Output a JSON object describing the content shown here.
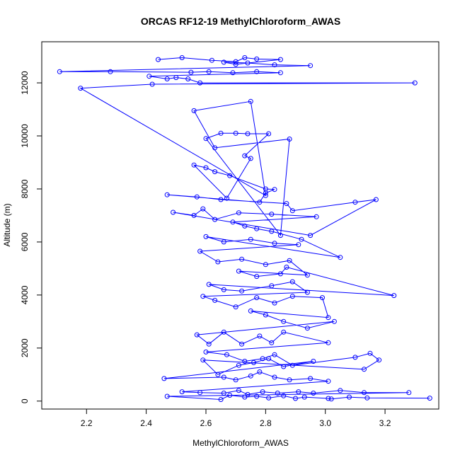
{
  "chart_data": {
    "type": "scatter",
    "title": "ORCAS RF12-19 MethylChloroform_AWAS",
    "xlabel": "MethylChloroform_AWAS",
    "ylabel": "Altitude (m)",
    "xlim": [
      2.05,
      3.38
    ],
    "ylim": [
      -300,
      13550
    ],
    "xticks": [
      2.2,
      2.4,
      2.6,
      2.8,
      3.0,
      3.2
    ],
    "yticks": [
      0,
      2000,
      4000,
      6000,
      8000,
      10000,
      12000
    ],
    "xtick_labels": [
      "2.2",
      "2.4",
      "2.6",
      "2.8",
      "3.0",
      "3.2"
    ],
    "ytick_labels": [
      "0",
      "2000",
      "4000",
      "6000",
      "8000",
      "10000",
      "12000"
    ],
    "color": "#0000ff",
    "grid": false,
    "series": [
      {
        "points": [
          [
            2.44,
            12880
          ],
          [
            2.52,
            12950
          ],
          [
            2.62,
            12850
          ],
          [
            2.7,
            12800
          ],
          [
            2.73,
            12950
          ],
          [
            2.77,
            12900
          ],
          [
            2.85,
            12880
          ],
          [
            2.7,
            12700
          ],
          [
            2.66,
            12780
          ],
          [
            2.74,
            12750
          ],
          [
            2.83,
            12680
          ],
          [
            2.95,
            12650
          ],
          [
            2.11,
            12420
          ],
          [
            2.28,
            12420
          ],
          [
            2.55,
            12400
          ],
          [
            2.61,
            12420
          ],
          [
            2.69,
            12380
          ],
          [
            2.77,
            12420
          ],
          [
            2.85,
            12380
          ],
          [
            2.41,
            12250
          ],
          [
            2.47,
            12150
          ],
          [
            2.5,
            12200
          ],
          [
            2.54,
            12150
          ],
          [
            2.58,
            12000
          ],
          [
            3.3,
            12000
          ],
          [
            2.42,
            11950
          ],
          [
            2.18,
            11800
          ],
          [
            2.8,
            7750
          ],
          [
            2.75,
            11300
          ],
          [
            2.56,
            10950
          ],
          [
            2.63,
            9550
          ],
          [
            2.88,
            9880
          ],
          [
            2.85,
            6250
          ],
          [
            2.6,
            9900
          ],
          [
            2.65,
            10100
          ],
          [
            2.7,
            10100
          ],
          [
            2.74,
            10080
          ],
          [
            2.81,
            10080
          ],
          [
            2.73,
            9250
          ],
          [
            2.75,
            9150
          ],
          [
            2.67,
            7650
          ],
          [
            2.56,
            8900
          ],
          [
            2.6,
            8800
          ],
          [
            2.63,
            8650
          ],
          [
            2.68,
            8500
          ],
          [
            2.8,
            8000
          ],
          [
            2.83,
            7980
          ],
          [
            2.8,
            7850
          ],
          [
            2.78,
            7500
          ],
          [
            2.47,
            7780
          ],
          [
            2.57,
            7700
          ],
          [
            2.65,
            7600
          ],
          [
            2.87,
            7450
          ],
          [
            2.89,
            7180
          ],
          [
            3.1,
            7500
          ],
          [
            3.17,
            7600
          ],
          [
            2.95,
            6250
          ],
          [
            2.49,
            7120
          ],
          [
            2.56,
            7000
          ],
          [
            2.59,
            7250
          ],
          [
            2.63,
            6850
          ],
          [
            2.71,
            7100
          ],
          [
            2.82,
            7050
          ],
          [
            2.97,
            6950
          ],
          [
            2.69,
            6750
          ],
          [
            2.73,
            6600
          ],
          [
            2.77,
            6500
          ],
          [
            2.82,
            6400
          ],
          [
            2.92,
            6100
          ],
          [
            3.05,
            5420
          ],
          [
            2.6,
            6200
          ],
          [
            2.66,
            6000
          ],
          [
            2.75,
            6100
          ],
          [
            2.83,
            5950
          ],
          [
            2.91,
            5900
          ],
          [
            2.58,
            5650
          ],
          [
            2.64,
            5250
          ],
          [
            2.72,
            5350
          ],
          [
            2.8,
            5150
          ],
          [
            2.88,
            5300
          ],
          [
            2.94,
            4750
          ],
          [
            2.71,
            4900
          ],
          [
            2.77,
            4700
          ],
          [
            2.85,
            4800
          ],
          [
            2.87,
            5050
          ],
          [
            3.23,
            3980
          ],
          [
            2.61,
            4400
          ],
          [
            2.66,
            4200
          ],
          [
            2.72,
            4150
          ],
          [
            2.82,
            4350
          ],
          [
            2.89,
            4500
          ],
          [
            2.94,
            4100
          ],
          [
            2.59,
            3950
          ],
          [
            2.63,
            3800
          ],
          [
            2.7,
            3550
          ],
          [
            2.77,
            3900
          ],
          [
            2.83,
            3700
          ],
          [
            2.89,
            3950
          ],
          [
            2.99,
            3900
          ],
          [
            3.01,
            3150
          ],
          [
            2.75,
            3400
          ],
          [
            2.8,
            3250
          ],
          [
            2.86,
            3000
          ],
          [
            2.94,
            2750
          ],
          [
            3.03,
            3000
          ],
          [
            2.57,
            2500
          ],
          [
            2.61,
            2150
          ],
          [
            2.66,
            2600
          ],
          [
            2.72,
            2150
          ],
          [
            2.78,
            2450
          ],
          [
            2.82,
            2200
          ],
          [
            2.86,
            2600
          ],
          [
            3.01,
            2200
          ],
          [
            2.6,
            1850
          ],
          [
            2.67,
            1750
          ],
          [
            2.73,
            1500
          ],
          [
            2.79,
            1600
          ],
          [
            2.83,
            1750
          ],
          [
            2.89,
            1350
          ],
          [
            3.1,
            1650
          ],
          [
            3.15,
            1800
          ],
          [
            3.18,
            1550
          ],
          [
            3.13,
            1200
          ],
          [
            2.59,
            1550
          ],
          [
            2.64,
            1000
          ],
          [
            2.71,
            1350
          ],
          [
            2.76,
            1450
          ],
          [
            2.81,
            1600
          ],
          [
            2.86,
            1300
          ],
          [
            2.96,
            1500
          ],
          [
            2.46,
            850
          ],
          [
            2.66,
            900
          ],
          [
            2.7,
            800
          ],
          [
            2.75,
            950
          ],
          [
            2.78,
            1100
          ],
          [
            2.83,
            900
          ],
          [
            2.88,
            800
          ],
          [
            2.95,
            850
          ],
          [
            3.01,
            750
          ],
          [
            2.52,
            350
          ],
          [
            2.58,
            320
          ],
          [
            2.66,
            300
          ],
          [
            2.71,
            400
          ],
          [
            2.74,
            250
          ],
          [
            2.79,
            350
          ],
          [
            2.84,
            300
          ],
          [
            2.91,
            350
          ],
          [
            2.96,
            300
          ],
          [
            3.05,
            400
          ],
          [
            3.13,
            320
          ],
          [
            3.28,
            320
          ],
          [
            2.47,
            180
          ],
          [
            2.65,
            60
          ],
          [
            2.68,
            220
          ],
          [
            2.73,
            150
          ],
          [
            2.77,
            180
          ],
          [
            2.81,
            120
          ],
          [
            2.86,
            200
          ],
          [
            2.9,
            100
          ],
          [
            2.93,
            150
          ],
          [
            3.01,
            100
          ],
          [
            3.02,
            80
          ],
          [
            3.08,
            150
          ],
          [
            3.14,
            120
          ],
          [
            3.35,
            110
          ]
        ]
      }
    ]
  }
}
